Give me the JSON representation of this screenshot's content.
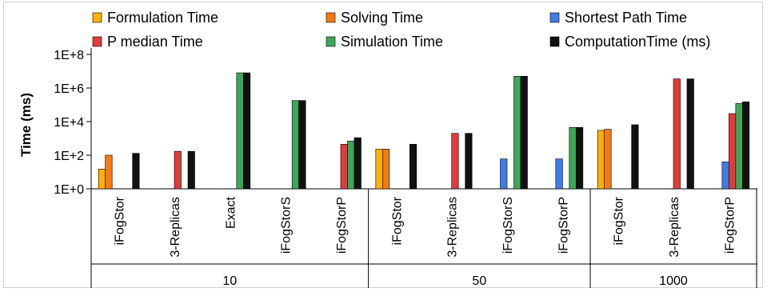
{
  "chart_data": {
    "type": "bar",
    "scale": "log10",
    "ylabel": "Time (ms)",
    "yticks": [
      "1E+0",
      "1E+2",
      "1E+4",
      "1E+6",
      "1E+8"
    ],
    "ylim": [
      1,
      100000000
    ],
    "legend_position": "top",
    "series": [
      {
        "name": "Formulation Time",
        "color": "#FFB000"
      },
      {
        "name": "Solving Time",
        "color": "#F57A12"
      },
      {
        "name": "Shortest Path Time",
        "color": "#3E7CE6"
      },
      {
        "name": "P median Time",
        "color": "#E23B3B"
      },
      {
        "name": "Simulation Time",
        "color": "#3BA858"
      },
      {
        "name": "ComputationTime (ms)",
        "color": "#111111"
      }
    ],
    "groups": [
      {
        "label": "10",
        "categories": [
          {
            "label": "iFogStor",
            "values": [
              15,
              100,
              null,
              null,
              null,
              130
            ]
          },
          {
            "label": "3-Replicas",
            "values": [
              null,
              null,
              null,
              170,
              null,
              170
            ]
          },
          {
            "label": "Exact",
            "values": [
              null,
              null,
              null,
              null,
              8000000,
              8000000
            ]
          },
          {
            "label": "iFogStorS",
            "values": [
              null,
              null,
              null,
              null,
              180000,
              180000
            ]
          },
          {
            "label": "iFogStorP",
            "values": [
              null,
              null,
              null,
              450,
              700,
              1100
            ]
          }
        ]
      },
      {
        "label": "50",
        "categories": [
          {
            "label": "iFogStor",
            "values": [
              230,
              230,
              null,
              null,
              null,
              450
            ]
          },
          {
            "label": "3-Replicas",
            "values": [
              null,
              null,
              null,
              2000,
              null,
              2000
            ]
          },
          {
            "label": "iFogStorS",
            "values": [
              null,
              null,
              60,
              null,
              5000000,
              5000000
            ]
          },
          {
            "label": "iFogStorP",
            "values": [
              null,
              null,
              60,
              null,
              4500,
              4500
            ]
          }
        ]
      },
      {
        "label": "1000",
        "categories": [
          {
            "label": "iFogStor",
            "values": [
              3000,
              3500,
              null,
              null,
              null,
              6500
            ]
          },
          {
            "label": "3-Replicas",
            "values": [
              null,
              null,
              null,
              3500000,
              null,
              3500000
            ]
          },
          {
            "label": "iFogStorP",
            "values": [
              null,
              null,
              40,
              30000,
              120000,
              150000
            ]
          }
        ]
      }
    ]
  }
}
